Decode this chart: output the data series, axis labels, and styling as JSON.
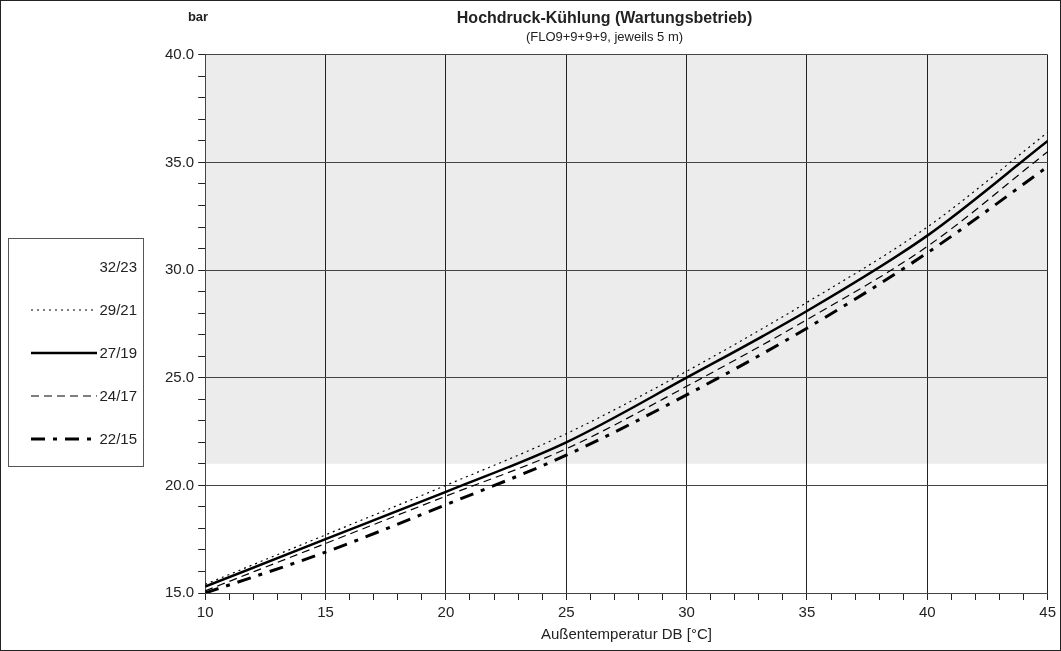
{
  "chart_data": {
    "type": "line",
    "title": "Hochdruck-Kühlung (Wartungsbetrieb)",
    "subtitle": "(FLO9+9+9+9, jeweils 5 m)",
    "xlabel": "Außentemperatur DB [°C]",
    "ylabel": "bar",
    "x": [
      10,
      15,
      20,
      25,
      30,
      35,
      40,
      45
    ],
    "series": [
      {
        "name": "32/23",
        "values": [
          null,
          null,
          null,
          null,
          null,
          null,
          null,
          null
        ]
      },
      {
        "name": "29/21",
        "color": "#000000",
        "line_style": "dotted",
        "values": [
          15.4,
          17.7,
          20.0,
          22.4,
          25.3,
          28.5,
          32.0,
          36.4
        ]
      },
      {
        "name": "27/19",
        "color": "#000000",
        "line_style": "solid",
        "values": [
          15.3,
          17.5,
          19.7,
          22.0,
          25.0,
          28.1,
          31.6,
          36.0
        ]
      },
      {
        "name": "24/17",
        "color": "#000000",
        "line_style": "dashed",
        "values": [
          15.1,
          17.3,
          19.5,
          21.7,
          24.6,
          27.7,
          31.1,
          35.5
        ]
      },
      {
        "name": "22/15",
        "color": "#000000",
        "line_style": "dashdot",
        "values": [
          15.0,
          16.9,
          19.1,
          21.4,
          24.2,
          27.3,
          30.8,
          34.8
        ]
      }
    ],
    "xlim": [
      10,
      45
    ],
    "xticks": [
      10,
      {
        "value": 11,
        "label": null
      },
      {
        "value": 12,
        "label": null
      },
      {
        "value": 13,
        "label": null
      },
      {
        "value": 14,
        "label": null
      },
      15,
      {
        "value": 16,
        "label": null
      },
      {
        "value": 17,
        "label": null
      },
      {
        "value": 18,
        "label": null
      },
      {
        "value": 19,
        "label": null
      },
      20,
      {
        "value": 21,
        "label": null
      },
      {
        "value": 22,
        "label": null
      },
      {
        "value": 23,
        "label": null
      },
      {
        "value": 24,
        "label": null
      },
      25,
      {
        "value": 26,
        "label": null
      },
      {
        "value": 27,
        "label": null
      },
      {
        "value": 28,
        "label": null
      },
      {
        "value": 29,
        "label": null
      },
      30,
      {
        "value": 31,
        "label": null
      },
      {
        "value": 32,
        "label": null
      },
      {
        "value": 33,
        "label": null
      },
      {
        "value": 34,
        "label": null
      },
      35,
      {
        "value": 36,
        "label": null
      },
      {
        "value": 37,
        "label": null
      },
      {
        "value": 38,
        "label": null
      },
      {
        "value": 39,
        "label": null
      },
      40,
      {
        "value": 41,
        "label": null
      },
      {
        "value": 42,
        "label": null
      },
      {
        "value": 43,
        "label": null
      },
      {
        "value": 44,
        "label": null
      },
      45
    ],
    "ylim": [
      15,
      40
    ],
    "yticks": [
      {
        "value": 15,
        "label": "15.0"
      },
      {
        "value": 16,
        "label": null
      },
      {
        "value": 17,
        "label": null
      },
      {
        "value": 18,
        "label": null
      },
      {
        "value": 19,
        "label": null
      },
      {
        "value": 20,
        "label": "20.0"
      },
      {
        "value": 21,
        "label": null
      },
      {
        "value": 22,
        "label": null
      },
      {
        "value": 23,
        "label": null
      },
      {
        "value": 24,
        "label": null
      },
      {
        "value": 25,
        "label": "25.0"
      },
      {
        "value": 26,
        "label": null
      },
      {
        "value": 27,
        "label": null
      },
      {
        "value": 28,
        "label": null
      },
      {
        "value": 29,
        "label": null
      },
      {
        "value": 30,
        "label": "30.0"
      },
      {
        "value": 31,
        "label": null
      },
      {
        "value": 32,
        "label": null
      },
      {
        "value": 33,
        "label": null
      },
      {
        "value": 34,
        "label": null
      },
      {
        "value": 35,
        "label": "35.0"
      },
      {
        "value": 36,
        "label": null
      },
      {
        "value": 37,
        "label": null
      },
      {
        "value": 38,
        "label": null
      },
      {
        "value": 39,
        "label": null
      },
      {
        "value": 40,
        "label": "40.0"
      }
    ],
    "bands": [
      {
        "axis": "y",
        "from": 21,
        "to": 40,
        "color": "#ececec"
      }
    ],
    "grid": true,
    "legend": "left",
    "marker": "none"
  }
}
